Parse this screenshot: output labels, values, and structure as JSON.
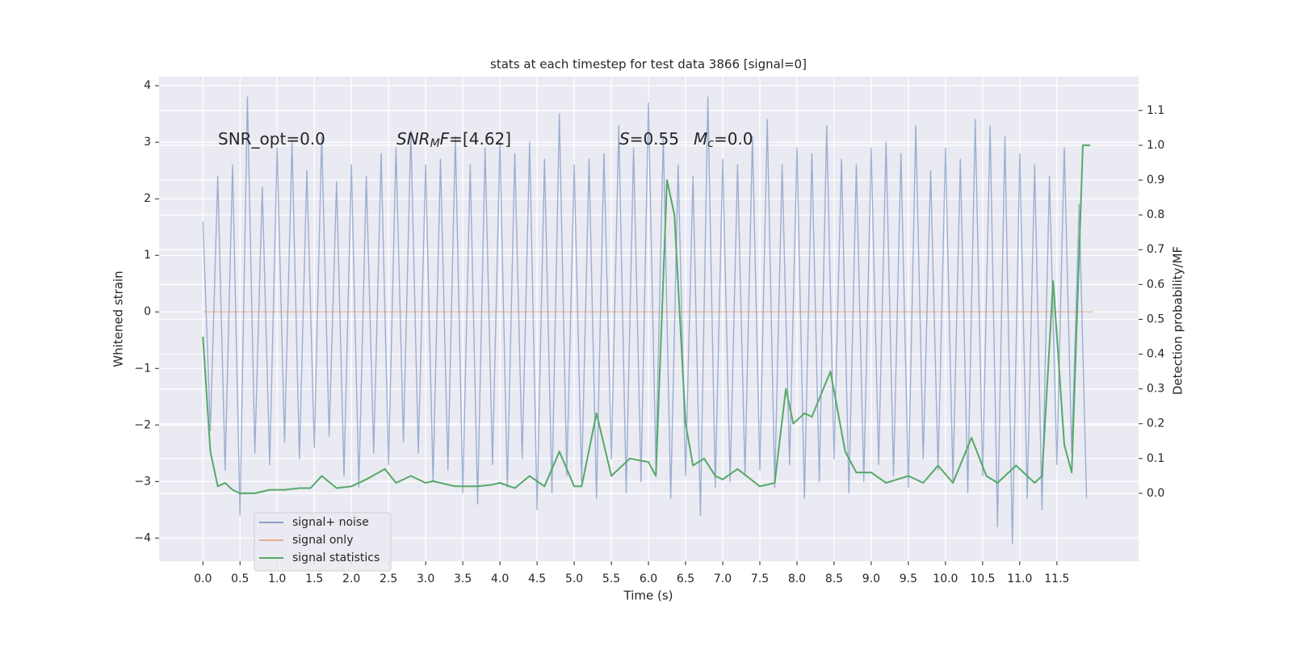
{
  "chart_data": {
    "type": "line",
    "title": "stats at each timestep for test data 3866 [signal=0]",
    "xlabel": "Time (s)",
    "ylabel": "Whitened strain",
    "y2label": "Detection probability/MF",
    "xlim": [
      -0.59,
      12.6
    ],
    "ylim": [
      -4.41,
      4.16
    ],
    "y2lim": [
      -0.195,
      1.197
    ],
    "xticks": [
      {
        "value": 0,
        "label": "0.0"
      },
      {
        "value": 0.5,
        "label": "0.5"
      },
      {
        "value": 1,
        "label": "1.0"
      },
      {
        "value": 1.5,
        "label": "1.5"
      },
      {
        "value": 2,
        "label": "2.0"
      },
      {
        "value": 2.5,
        "label": "2.5"
      },
      {
        "value": 3,
        "label": "3.0"
      },
      {
        "value": 3.5,
        "label": "3.5"
      },
      {
        "value": 4,
        "label": "4.0"
      },
      {
        "value": 4.5,
        "label": "4.5"
      },
      {
        "value": 5,
        "label": "5.0"
      },
      {
        "value": 5.5,
        "label": "5.5"
      },
      {
        "value": 6,
        "label": "6.0"
      },
      {
        "value": 6.5,
        "label": "6.5"
      },
      {
        "value": 7,
        "label": "7.0"
      },
      {
        "value": 7.5,
        "label": "7.5"
      },
      {
        "value": 8,
        "label": "8.0"
      },
      {
        "value": 8.5,
        "label": "8.5"
      },
      {
        "value": 9,
        "label": "9.0"
      },
      {
        "value": 9.5,
        "label": "9.5"
      },
      {
        "value": 10,
        "label": "10.0"
      },
      {
        "value": 10.5,
        "label": "10.5"
      },
      {
        "value": 11,
        "label": "11.0"
      },
      {
        "value": 11.5,
        "label": "11.5"
      }
    ],
    "yticks": [
      {
        "value": -4,
        "label": "−4"
      },
      {
        "value": -3,
        "label": "−3"
      },
      {
        "value": -2,
        "label": "−2"
      },
      {
        "value": -1,
        "label": "−1"
      },
      0,
      1,
      2,
      3,
      4
    ],
    "y2ticks": [
      {
        "value": 0,
        "label": "0.0"
      },
      {
        "value": 0.1,
        "label": "0.1"
      },
      {
        "value": 0.2,
        "label": "0.2"
      },
      {
        "value": 0.3,
        "label": "0.3"
      },
      {
        "value": 0.4,
        "label": "0.4"
      },
      {
        "value": 0.5,
        "label": "0.5"
      },
      {
        "value": 0.6,
        "label": "0.6"
      },
      {
        "value": 0.7,
        "label": "0.7"
      },
      {
        "value": 0.8,
        "label": "0.8"
      },
      {
        "value": 0.9,
        "label": "0.9"
      },
      {
        "value": 1,
        "label": "1.0"
      },
      {
        "value": 1.1,
        "label": "1.1"
      }
    ],
    "grid": true,
    "legend": "lower left",
    "annotations": [
      {
        "segments": [
          "SNR_opt=0.0"
        ]
      },
      {
        "segments": [
          "SNR",
          "M",
          "F",
          "=[4.62]"
        ]
      },
      {
        "segments": [
          "S",
          "=0.55"
        ]
      },
      {
        "segments": [
          "M",
          "c",
          "=0.0"
        ]
      }
    ],
    "series": [
      {
        "name": "signal+ noise",
        "color": "#4c72b0",
        "x": [
          0,
          0.1,
          0.2,
          0.3,
          0.4,
          0.5,
          0.6,
          0.7,
          0.8,
          0.9,
          1,
          1.1,
          1.2,
          1.3,
          1.4,
          1.5,
          1.6,
          1.7,
          1.8,
          1.9,
          2,
          2.1,
          2.2,
          2.3,
          2.4,
          2.5,
          2.6,
          2.7,
          2.8,
          2.9,
          3,
          3.1,
          3.2,
          3.3,
          3.4,
          3.5,
          3.6,
          3.7,
          3.8,
          3.9,
          4,
          4.1,
          4.2,
          4.3,
          4.4,
          4.5,
          4.6,
          4.7,
          4.8,
          4.9,
          5,
          5.1,
          5.2,
          5.3,
          5.4,
          5.5,
          5.6,
          5.7,
          5.8,
          5.9,
          6,
          6.1,
          6.2,
          6.3,
          6.4,
          6.5,
          6.6,
          6.7,
          6.8,
          6.9,
          7,
          7.1,
          7.2,
          7.3,
          7.4,
          7.5,
          7.6,
          7.7,
          7.8,
          7.9,
          8,
          8.1,
          8.2,
          8.3,
          8.4,
          8.5,
          8.6,
          8.7,
          8.8,
          8.9,
          9,
          9.1,
          9.2,
          9.3,
          9.4,
          9.5,
          9.6,
          9.7,
          9.8,
          9.9,
          10,
          10.1,
          10.2,
          10.3,
          10.4,
          10.5,
          10.6,
          10.7,
          10.8,
          10.9,
          11,
          11.1,
          11.2,
          11.3,
          11.4,
          11.5,
          11.6,
          11.7,
          11.8,
          11.9
        ],
        "values": [
          1.6,
          -2.1,
          2.4,
          -2.8,
          2.6,
          -3.6,
          3.8,
          -2.5,
          2.2,
          -2.7,
          2.9,
          -2.3,
          3.0,
          -2.6,
          2.5,
          -2.4,
          3.1,
          -2.2,
          2.3,
          -2.9,
          2.6,
          -3.1,
          2.4,
          -2.5,
          2.8,
          -2.7,
          2.9,
          -2.3,
          3.2,
          -2.5,
          2.6,
          -3.0,
          2.7,
          -2.8,
          3.1,
          -3.2,
          2.6,
          -3.4,
          2.9,
          -2.7,
          3.0,
          -3.1,
          2.8,
          -2.6,
          3.0,
          -3.5,
          2.7,
          -3.2,
          3.5,
          -2.9,
          2.6,
          -3.0,
          2.7,
          -3.3,
          2.8,
          -2.6,
          3.3,
          -3.2,
          2.9,
          -3.0,
          3.7,
          -2.7,
          3.1,
          -3.3,
          2.6,
          -2.9,
          2.4,
          -3.6,
          3.8,
          -3.1,
          2.7,
          -3.0,
          2.6,
          -2.9,
          3.1,
          -2.8,
          3.4,
          -3.1,
          2.6,
          -2.7,
          2.9,
          -3.3,
          2.8,
          -3.0,
          3.3,
          -2.6,
          2.7,
          -3.2,
          2.6,
          -3.0,
          2.9,
          -2.7,
          3.0,
          -2.9,
          2.8,
          -3.1,
          3.3,
          -2.6,
          2.5,
          -2.8,
          2.9,
          -3.0,
          2.7,
          -3.2,
          3.4,
          -2.9,
          3.3,
          -3.8,
          3.1,
          -4.1,
          2.8,
          -3.3,
          2.6,
          -3.5,
          2.4,
          -2.7,
          2.9,
          -2.5,
          1.9,
          -3.3
        ]
      },
      {
        "name": "signal only",
        "color": "#dd8452",
        "x": [
          0,
          11.99
        ],
        "values": [
          0,
          0
        ]
      },
      {
        "name": "signal statistics",
        "color": "#55a868",
        "axis": "y2",
        "x": [
          0,
          0.1,
          0.2,
          0.3,
          0.4,
          0.5,
          0.7,
          0.9,
          1.1,
          1.3,
          1.45,
          1.6,
          1.8,
          2,
          2.2,
          2.45,
          2.6,
          2.8,
          3,
          3.1,
          3.4,
          3.7,
          3.9,
          4,
          4.2,
          4.4,
          4.6,
          4.8,
          5,
          5.1,
          5.3,
          5.5,
          5.75,
          6,
          6.1,
          6.25,
          6.35,
          6.5,
          6.6,
          6.75,
          6.9,
          7,
          7.2,
          7.5,
          7.7,
          7.85,
          7.95,
          8.1,
          8.2,
          8.45,
          8.65,
          8.8,
          9,
          9.2,
          9.5,
          9.7,
          9.9,
          10.1,
          10.35,
          10.55,
          10.7,
          10.95,
          11.2,
          11.3,
          11.45,
          11.6,
          11.7,
          11.85,
          11.95
        ],
        "values": [
          0.45,
          0.12,
          0.02,
          0.03,
          0.01,
          0,
          0,
          0.01,
          0.01,
          0.015,
          0.015,
          0.05,
          0.015,
          0.02,
          0.04,
          0.07,
          0.03,
          0.05,
          0.03,
          0.035,
          0.02,
          0.02,
          0.025,
          0.03,
          0.015,
          0.05,
          0.02,
          0.12,
          0.02,
          0.02,
          0.23,
          0.05,
          0.1,
          0.09,
          0.05,
          0.9,
          0.8,
          0.2,
          0.08,
          0.1,
          0.05,
          0.04,
          0.07,
          0.02,
          0.03,
          0.3,
          0.2,
          0.23,
          0.22,
          0.35,
          0.12,
          0.06,
          0.06,
          0.03,
          0.05,
          0.03,
          0.08,
          0.03,
          0.16,
          0.05,
          0.03,
          0.08,
          0.03,
          0.05,
          0.61,
          0.14,
          0.06,
          1.0,
          1.0
        ]
      }
    ]
  }
}
